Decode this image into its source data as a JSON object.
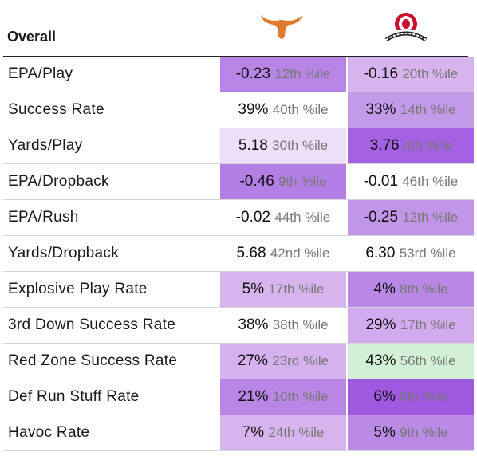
{
  "header": {
    "title": "Overall",
    "teams": [
      {
        "name": "Texas",
        "icon": "longhorn-logo-icon",
        "color": "#e07a2e"
      },
      {
        "name": "Ohio State",
        "icon": "ohio-state-logo-icon",
        "color": "#c8102e"
      }
    ]
  },
  "rows": [
    {
      "label": "EPA/Play",
      "a": {
        "value": "-0.23",
        "pct": "12th %ile",
        "bg": "#b885e6"
      },
      "b": {
        "value": "-0.16",
        "pct": "20th %ile",
        "bg": "#d7b4ee"
      }
    },
    {
      "label": "Success Rate",
      "a": {
        "value": "39%",
        "pct": "40th %ile",
        "bg": "#ffffff"
      },
      "b": {
        "value": "33%",
        "pct": "14th %ile",
        "bg": "#c39ae8"
      }
    },
    {
      "label": "Yards/Play",
      "a": {
        "value": "5.18",
        "pct": "30th %ile",
        "bg": "#eedef7"
      },
      "b": {
        "value": "3.76",
        "pct": "4th %ile",
        "bg": "#a461e2"
      }
    },
    {
      "label": "EPA/Dropback",
      "a": {
        "value": "-0.46",
        "pct": "9th %ile",
        "bg": "#b47fe5"
      },
      "b": {
        "value": "-0.01",
        "pct": "46th %ile",
        "bg": "#ffffff"
      }
    },
    {
      "label": "EPA/Rush",
      "a": {
        "value": "-0.02",
        "pct": "44th %ile",
        "bg": "#ffffff"
      },
      "b": {
        "value": "-0.25",
        "pct": "12th %ile",
        "bg": "#c196e8"
      }
    },
    {
      "label": "Yards/Dropback",
      "a": {
        "value": "5.68",
        "pct": "42nd %ile",
        "bg": "#ffffff"
      },
      "b": {
        "value": "6.30",
        "pct": "53rd %ile",
        "bg": "#ffffff"
      }
    },
    {
      "label": "Explosive Play Rate",
      "a": {
        "value": "5%",
        "pct": "17th %ile",
        "bg": "#d7b4ee"
      },
      "b": {
        "value": "4%",
        "pct": "8th %ile",
        "bg": "#b987e6"
      }
    },
    {
      "label": "3rd Down Success Rate",
      "a": {
        "value": "38%",
        "pct": "38th %ile",
        "bg": "#ffffff"
      },
      "b": {
        "value": "29%",
        "pct": "17th %ile",
        "bg": "#d1abed"
      }
    },
    {
      "label": "Red Zone Success Rate",
      "a": {
        "value": "27%",
        "pct": "23rd %ile",
        "bg": "#d5b2ee"
      },
      "b": {
        "value": "43%",
        "pct": "56th %ile",
        "bg": "#d1f0d5"
      }
    },
    {
      "label": "Def Run Stuff Rate",
      "a": {
        "value": "21%",
        "pct": "10th %ile",
        "bg": "#b986e6"
      },
      "b": {
        "value": "6%",
        "pct": "0th %ile",
        "bg": "#9f58e0"
      }
    },
    {
      "label": "Havoc Rate",
      "a": {
        "value": "7%",
        "pct": "24th %ile",
        "bg": "#d7b4ee"
      },
      "b": {
        "value": "5%",
        "pct": "9th %ile",
        "bg": "#bb8ae7"
      }
    }
  ]
}
